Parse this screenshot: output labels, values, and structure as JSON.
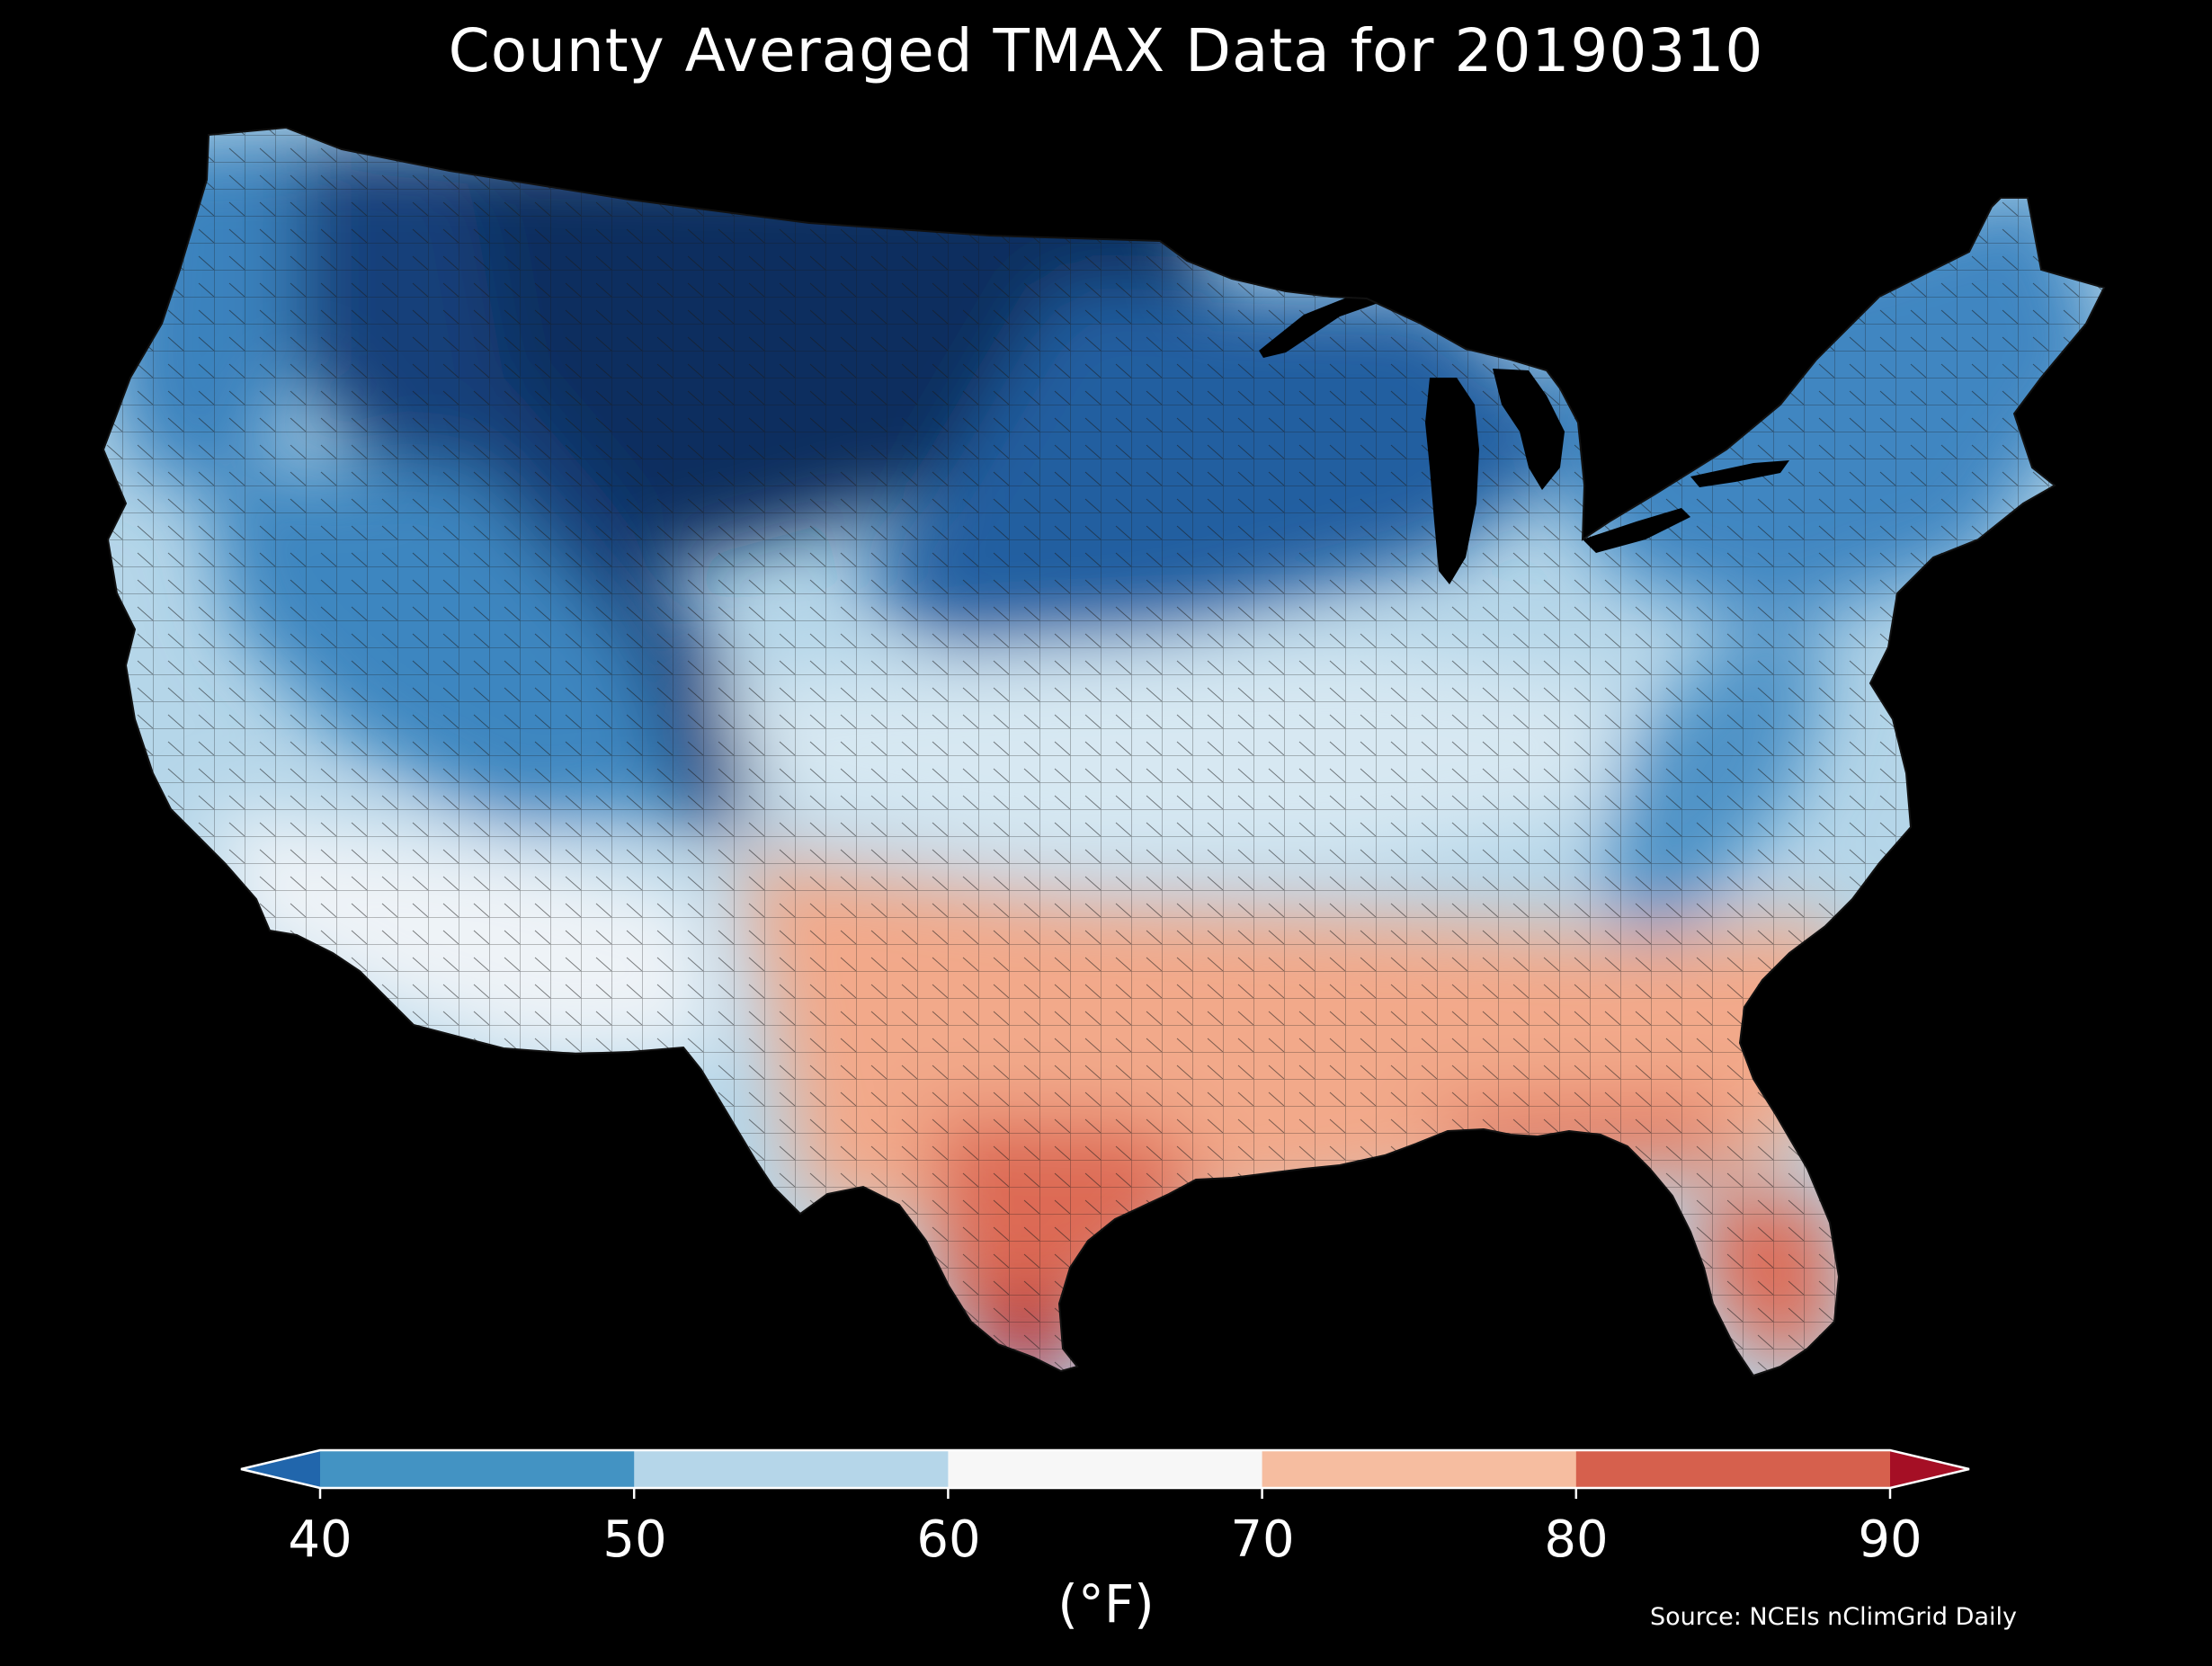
{
  "title": "County Averaged TMAX Data for 20190310",
  "source": "Source: NCEIs nClimGrid Daily",
  "colorbar": {
    "unit_label": "(°F)",
    "ticks": [
      "40",
      "50",
      "60",
      "70",
      "80",
      "90"
    ],
    "bins": [
      {
        "range": "<40",
        "color": "#2166ac"
      },
      {
        "range": "40-50",
        "color": "#4393c3"
      },
      {
        "range": "50-60",
        "color": "#b5d6e9"
      },
      {
        "range": "60-70",
        "color": "#f7f7f7"
      },
      {
        "range": "70-80",
        "color": "#f6bda0"
      },
      {
        "range": "80-90",
        "color": "#d6604d"
      },
      {
        "range": ">90",
        "color": "#a50f25"
      }
    ]
  },
  "map": {
    "background": "#000000",
    "projection": "conic",
    "region": "contiguous United States counties",
    "regions": [
      {
        "region": "north-central",
        "color": "#0d2f5e"
      },
      {
        "region": "northern-rockies",
        "color": "#173f7a"
      },
      {
        "region": "pacific-northwest",
        "color": "#3b82bd"
      },
      {
        "region": "great-basin",
        "color": "#3d86c0"
      },
      {
        "region": "upper-midwest",
        "color": "#215ea0"
      },
      {
        "region": "northeast",
        "color": "#3f86c1"
      },
      {
        "region": "mid-atlantic-appalachia",
        "color": "#4d92c6"
      },
      {
        "region": "central-plains-ohio-valley",
        "color": "#d7e8f2"
      },
      {
        "region": "southwest",
        "color": "#eef3f7"
      },
      {
        "region": "southern-plains-southeast",
        "color": "#f2a98a"
      },
      {
        "region": "gulf-texas",
        "color": "#dd6b55"
      },
      {
        "region": "south-texas-tip",
        "color": "#b01e2d"
      }
    ]
  }
}
